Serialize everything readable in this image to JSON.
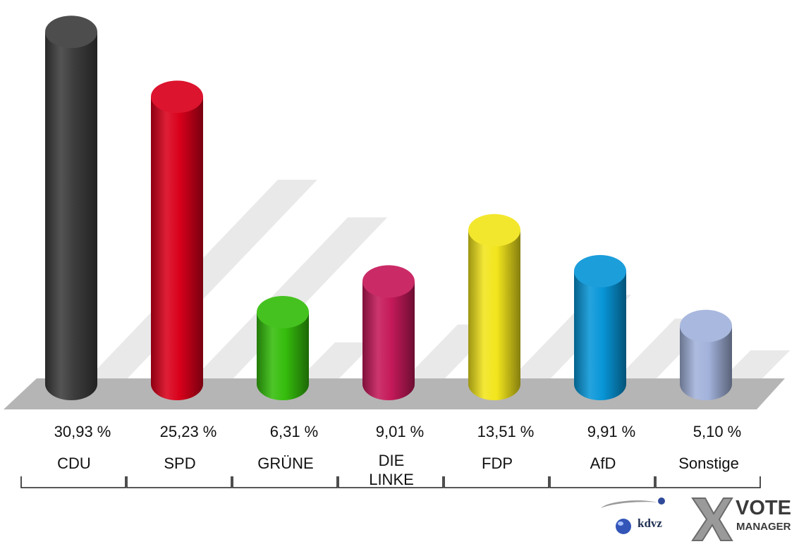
{
  "chart_data": {
    "type": "bar",
    "style": "3d-cylinder",
    "title": "",
    "xlabel": "",
    "ylabel": "",
    "categories": [
      "CDU",
      "SPD",
      "GRÜNE",
      "DIE LINKE",
      "FDP",
      "AfD",
      "Sonstige"
    ],
    "category_lines": [
      [
        "CDU"
      ],
      [
        "SPD"
      ],
      [
        "GRÜNE"
      ],
      [
        "DIE",
        "LINKE"
      ],
      [
        "FDP"
      ],
      [
        "AfD"
      ],
      [
        "Sonstige"
      ]
    ],
    "values": [
      30.93,
      25.23,
      6.31,
      9.01,
      13.51,
      9.91,
      5.1
    ],
    "value_labels": [
      "30,93 %",
      "25,23 %",
      "6,31 %",
      "9,01 %",
      "13,51 %",
      "9,91 %",
      "5,10 %"
    ],
    "colors": [
      "#3d3d3d",
      "#d9001b",
      "#35bd0c",
      "#c5195a",
      "#f2e51c",
      "#0896d8",
      "#a2b2db"
    ],
    "ylim": [
      0,
      31.5
    ],
    "grid": false,
    "legend": "none"
  },
  "branding": {
    "logo1_text": "kdvz",
    "logo2_line1": "VOTE",
    "logo2_line2": "MANAGER"
  }
}
